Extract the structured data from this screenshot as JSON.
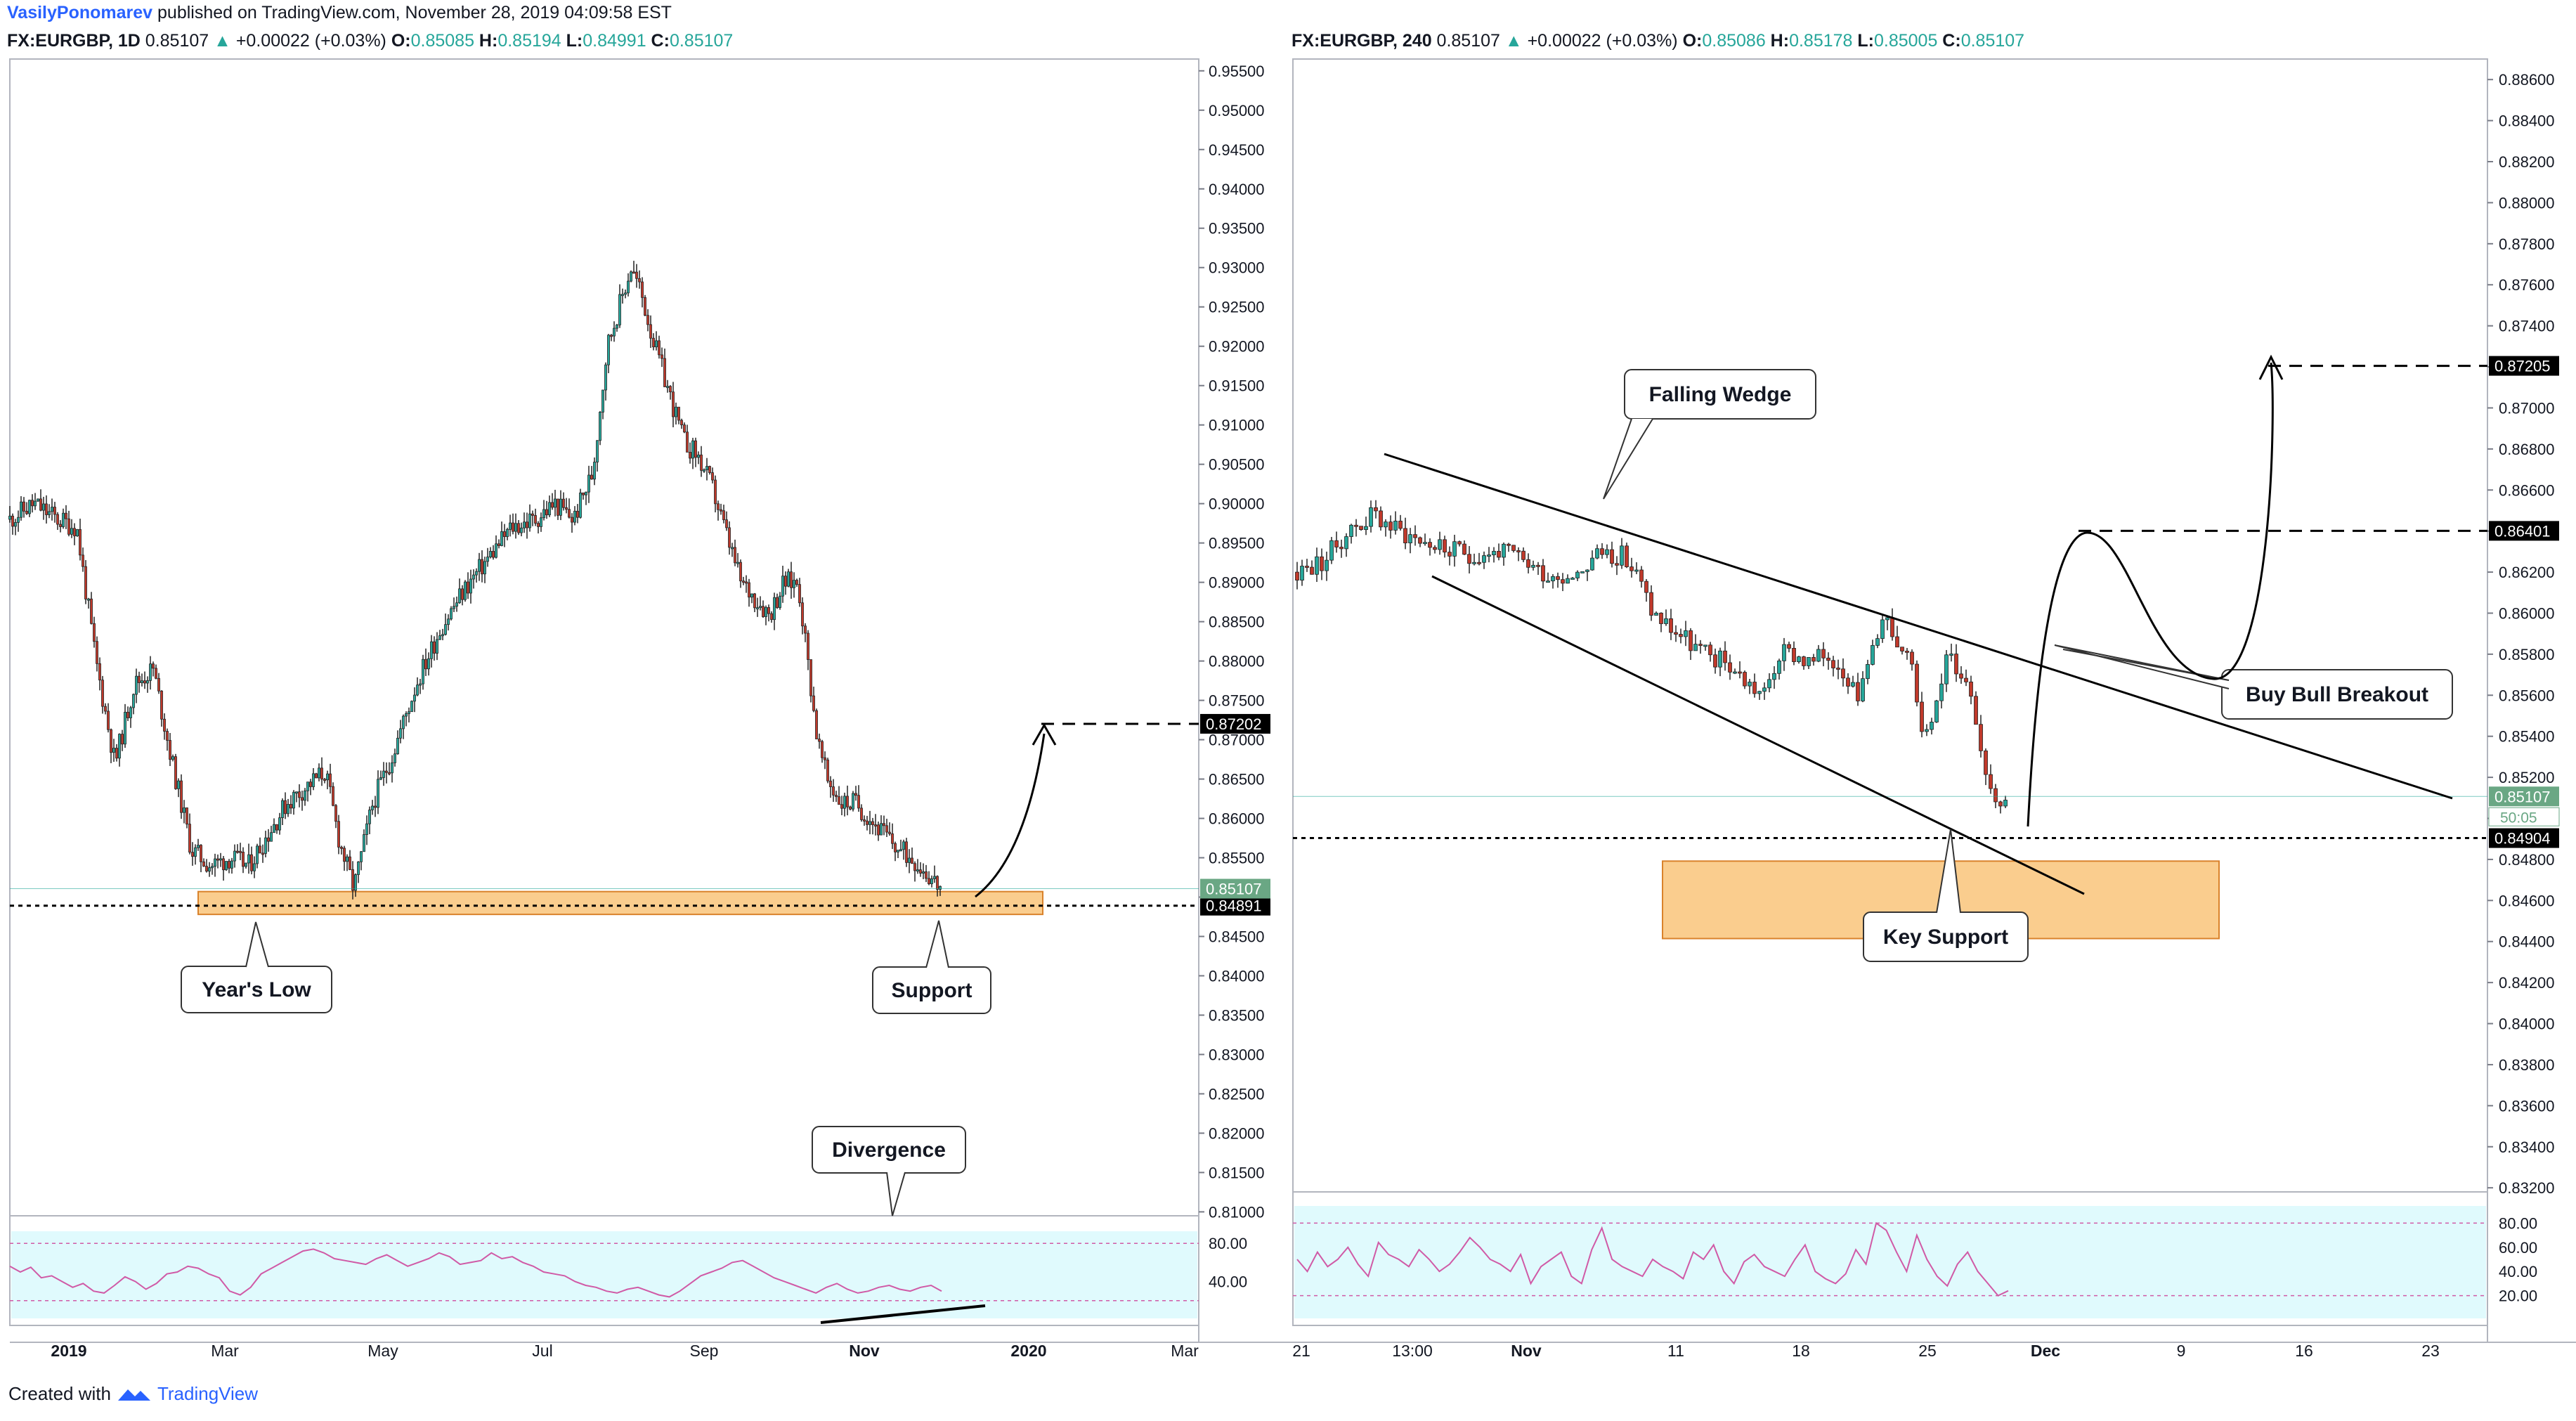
{
  "header": {
    "author": "VasilyPonomarev",
    "published_text": " published on TradingView.com, November 28, 2019 04:09:58 EST"
  },
  "left_header": {
    "symbol": "FX:EURGBP, 1D",
    "price": " 0.85107",
    "arrow": "▲",
    "change": " +0.00022 (+0.03%)",
    "o_label": " O:",
    "o_value": "0.85085",
    "h_label": " H:",
    "h_value": "0.85194",
    "l_label": " L:",
    "l_value": "0.84991",
    "c_label": " C:",
    "c_value": "0.85107"
  },
  "right_header": {
    "symbol": "FX:EURGBP, 240",
    "price": " 0.85107",
    "arrow": "▲",
    "change": " +0.00022 (+0.03%)",
    "o_label": " O:",
    "o_value": "0.85086",
    "h_label": " H:",
    "h_value": "0.85178",
    "l_label": " L:",
    "l_value": "0.85005",
    "c_label": " C:",
    "c_value": "0.85107"
  },
  "footer": {
    "created_text": "Created with",
    "brand": "TradingView"
  },
  "colors": {
    "up": "#26a69a",
    "down": "#c0392b",
    "zone": "#f9c47a",
    "rsi_bg": "#e0fafd",
    "rsi_line": "#d05aa6",
    "accent": "#2962ff"
  },
  "chart_data": [
    {
      "type": "candlestick",
      "symbol": "FX:EURGBP",
      "interval": "1D",
      "ylim": [
        0.8095,
        0.9565
      ],
      "yticks": [
        "0.95500",
        "0.95000",
        "0.94500",
        "0.94000",
        "0.93500",
        "0.93000",
        "0.92500",
        "0.92000",
        "0.91500",
        "0.91000",
        "0.90500",
        "0.90000",
        "0.89500",
        "0.89000",
        "0.88500",
        "0.88000",
        "0.87500",
        "0.87000",
        "0.86500",
        "0.86000",
        "0.85500",
        "0.85000",
        "0.84500",
        "0.84000",
        "0.83500",
        "0.83000",
        "0.82500",
        "0.82000",
        "0.81500",
        "0.81000"
      ],
      "xticks": [
        "2019",
        "Mar",
        "May",
        "Jul",
        "Sep",
        "Nov",
        "2020",
        "Mar"
      ],
      "path": [
        [
          0,
          0.898
        ],
        [
          10,
          0.9
        ],
        [
          20,
          0.898
        ],
        [
          28,
          0.897
        ],
        [
          36,
          0.88
        ],
        [
          44,
          0.867
        ],
        [
          52,
          0.877
        ],
        [
          60,
          0.879
        ],
        [
          68,
          0.867
        ],
        [
          76,
          0.856
        ],
        [
          84,
          0.854
        ],
        [
          92,
          0.855
        ],
        [
          100,
          0.854
        ],
        [
          108,
          0.858
        ],
        [
          116,
          0.862
        ],
        [
          124,
          0.864
        ],
        [
          132,
          0.866
        ],
        [
          138,
          0.857
        ],
        [
          144,
          0.851
        ],
        [
          152,
          0.862
        ],
        [
          160,
          0.868
        ],
        [
          170,
          0.877
        ],
        [
          180,
          0.884
        ],
        [
          190,
          0.889
        ],
        [
          200,
          0.893
        ],
        [
          210,
          0.897
        ],
        [
          220,
          0.898
        ],
        [
          228,
          0.9
        ],
        [
          236,
          0.898
        ],
        [
          244,
          0.904
        ],
        [
          250,
          0.92
        ],
        [
          256,
          0.926
        ],
        [
          260,
          0.93
        ],
        [
          264,
          0.927
        ],
        [
          270,
          0.92
        ],
        [
          276,
          0.914
        ],
        [
          282,
          0.908
        ],
        [
          288,
          0.906
        ],
        [
          294,
          0.902
        ],
        [
          300,
          0.896
        ],
        [
          306,
          0.89
        ],
        [
          312,
          0.888
        ],
        [
          318,
          0.886
        ],
        [
          324,
          0.89
        ],
        [
          330,
          0.89
        ],
        [
          334,
          0.88
        ],
        [
          338,
          0.87
        ],
        [
          342,
          0.865
        ],
        [
          348,
          0.862
        ],
        [
          354,
          0.862
        ],
        [
          360,
          0.86
        ],
        [
          366,
          0.858
        ],
        [
          372,
          0.856
        ],
        [
          378,
          0.855
        ],
        [
          384,
          0.853
        ],
        [
          390,
          0.851
        ]
      ],
      "last_price": "0.85107",
      "levels": [
        {
          "label": "0.84891",
          "value": 0.84891,
          "style": "dotted"
        },
        {
          "label": "0.87202",
          "value": 0.87202,
          "style": "dashed"
        }
      ],
      "support_zone": [
        0.8478,
        0.8507
      ],
      "annotations": [
        "Year's Low",
        "Support",
        "Divergence"
      ],
      "rsi": {
        "yticks": [
          "80.00",
          "40.00"
        ],
        "upper": 80,
        "lower": 20,
        "values": [
          56,
          50,
          55,
          44,
          46,
          40,
          34,
          38,
          30,
          28,
          36,
          45,
          40,
          32,
          38,
          48,
          50,
          56,
          54,
          48,
          44,
          30,
          26,
          34,
          48,
          54,
          60,
          66,
          72,
          74,
          70,
          64,
          62,
          60,
          58,
          64,
          68,
          62,
          56,
          60,
          64,
          70,
          66,
          58,
          60,
          62,
          70,
          64,
          66,
          60,
          56,
          50,
          48,
          46,
          40,
          36,
          34,
          30,
          28,
          32,
          34,
          30,
          26,
          24,
          30,
          38,
          46,
          50,
          54,
          60,
          62,
          56,
          50,
          44,
          40,
          36,
          32,
          28,
          34,
          38,
          32,
          28,
          30,
          34,
          36,
          32,
          30,
          34,
          36,
          30
        ]
      }
    },
    {
      "type": "candlestick",
      "symbol": "FX:EURGBP",
      "interval": "240",
      "ylim": [
        0.8318,
        0.887
      ],
      "yticks": [
        "0.88600",
        "0.88400",
        "0.88200",
        "0.88000",
        "0.87800",
        "0.87600",
        "0.87400",
        "0.87200",
        "0.87000",
        "0.86800",
        "0.86600",
        "0.86400",
        "0.86200",
        "0.86000",
        "0.85800",
        "0.85600",
        "0.85400",
        "0.85200",
        "0.85000",
        "0.84800",
        "0.84600",
        "0.84400",
        "0.84200",
        "0.84000",
        "0.83800",
        "0.83600",
        "0.83400",
        "0.83200"
      ],
      "xticks": [
        "21",
        "13:00",
        "Nov",
        "11",
        "18",
        "25",
        "Dec",
        "9",
        "16",
        "23"
      ],
      "path": [
        [
          0,
          0.862
        ],
        [
          10,
          0.8625
        ],
        [
          20,
          0.864
        ],
        [
          30,
          0.8648
        ],
        [
          40,
          0.864
        ],
        [
          50,
          0.8635
        ],
        [
          60,
          0.863
        ],
        [
          70,
          0.8628
        ],
        [
          80,
          0.863
        ],
        [
          90,
          0.8625
        ],
        [
          100,
          0.8618
        ],
        [
          110,
          0.862
        ],
        [
          120,
          0.863
        ],
        [
          128,
          0.8628
        ],
        [
          134,
          0.8618
        ],
        [
          140,
          0.86
        ],
        [
          150,
          0.859
        ],
        [
          160,
          0.858
        ],
        [
          170,
          0.8575
        ],
        [
          178,
          0.8565
        ],
        [
          184,
          0.856
        ],
        [
          190,
          0.858
        ],
        [
          196,
          0.858
        ],
        [
          202,
          0.8575
        ],
        [
          208,
          0.858
        ],
        [
          214,
          0.8575
        ],
        [
          222,
          0.856
        ],
        [
          228,
          0.8592
        ],
        [
          232,
          0.8598
        ],
        [
          236,
          0.858
        ],
        [
          242,
          0.8575
        ],
        [
          246,
          0.8545
        ],
        [
          252,
          0.8555
        ],
        [
          256,
          0.858
        ],
        [
          262,
          0.857
        ],
        [
          266,
          0.856
        ],
        [
          270,
          0.853
        ],
        [
          274,
          0.8512
        ],
        [
          280,
          0.851
        ]
      ],
      "last_price": "0.85107",
      "countdown": "50:05",
      "levels": [
        {
          "label": "0.84904",
          "value": 0.84904,
          "style": "dotted"
        },
        {
          "label": "0.86401",
          "value": 0.86401,
          "style": "dashed"
        },
        {
          "label": "0.87205",
          "value": 0.87205,
          "style": "dashed"
        }
      ],
      "support_zone": [
        0.8475,
        0.851
      ],
      "annotations": [
        "Falling Wedge",
        "Buy Bull Breakout",
        "Key Support"
      ],
      "rsi": {
        "yticks": [
          "80.00",
          "60.00",
          "40.00",
          "20.00"
        ],
        "upper": 80,
        "lower": 20,
        "values": [
          50,
          40,
          56,
          44,
          50,
          60,
          46,
          36,
          64,
          54,
          50,
          44,
          58,
          50,
          40,
          46,
          56,
          68,
          60,
          50,
          46,
          40,
          54,
          30,
          44,
          50,
          56,
          36,
          30,
          58,
          76,
          50,
          44,
          40,
          36,
          50,
          44,
          40,
          34,
          56,
          50,
          62,
          40,
          30,
          48,
          54,
          44,
          40,
          36,
          50,
          62,
          40,
          34,
          30,
          38,
          58,
          46,
          80,
          74,
          56,
          40,
          70,
          50,
          36,
          28,
          46,
          56,
          40,
          30,
          20,
          24
        ]
      }
    }
  ]
}
